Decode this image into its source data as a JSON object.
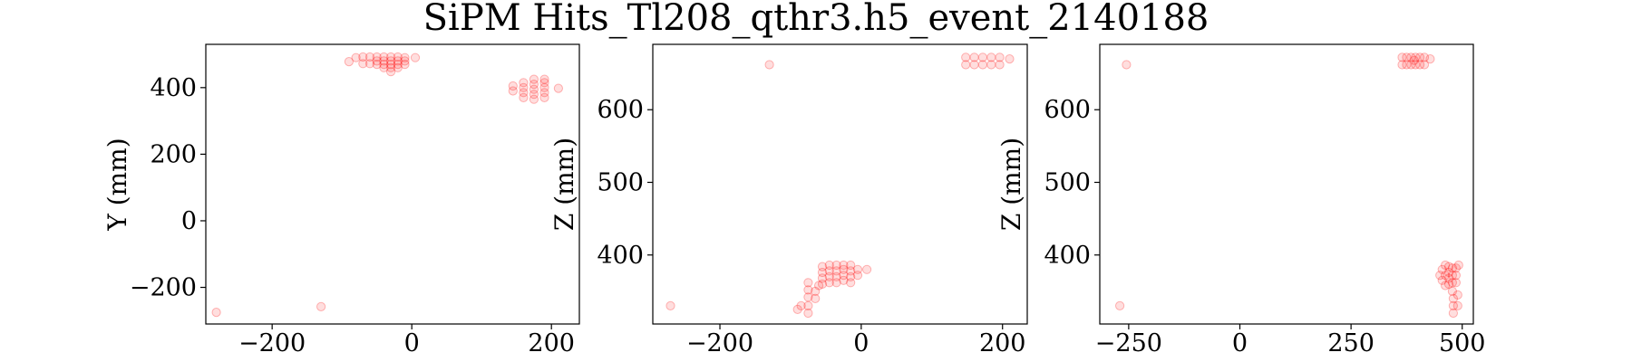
{
  "figure_title": "SiPM Hits_Tl208_qthr3.h5_event_2140188",
  "colors": {
    "points": "#ff0000",
    "frame": "#000000"
  },
  "chart_data": [
    {
      "type": "scatter",
      "xlabel": "",
      "ylabel": "Y (mm)",
      "xlim": [
        -295,
        240
      ],
      "ylim": [
        -310,
        530
      ],
      "xticks": [
        -200,
        0,
        200
      ],
      "yticks": [
        -200,
        0,
        200,
        400
      ],
      "points": [
        [
          -280,
          -275
        ],
        [
          -130,
          -258
        ],
        [
          -90,
          478
        ],
        [
          -80,
          490
        ],
        [
          -70,
          472
        ],
        [
          -70,
          492
        ],
        [
          -60,
          472
        ],
        [
          -60,
          492
        ],
        [
          -50,
          470
        ],
        [
          -50,
          480
        ],
        [
          -50,
          492
        ],
        [
          -40,
          460
        ],
        [
          -40,
          470
        ],
        [
          -40,
          480
        ],
        [
          -40,
          492
        ],
        [
          -30,
          460
        ],
        [
          -30,
          470
        ],
        [
          -30,
          480
        ],
        [
          -30,
          492
        ],
        [
          -20,
          460
        ],
        [
          -20,
          470
        ],
        [
          -20,
          480
        ],
        [
          -20,
          492
        ],
        [
          -10,
          470
        ],
        [
          -10,
          480
        ],
        [
          -10,
          490
        ],
        [
          5,
          490
        ],
        [
          -30,
          448
        ],
        [
          145,
          390
        ],
        [
          145,
          405
        ],
        [
          160,
          370
        ],
        [
          160,
          385
        ],
        [
          160,
          400
        ],
        [
          160,
          415
        ],
        [
          175,
          365
        ],
        [
          175,
          380
        ],
        [
          175,
          395
        ],
        [
          175,
          410
        ],
        [
          175,
          425
        ],
        [
          190,
          370
        ],
        [
          190,
          385
        ],
        [
          190,
          400
        ],
        [
          190,
          415
        ],
        [
          190,
          425
        ],
        [
          210,
          398
        ]
      ]
    },
    {
      "type": "scatter",
      "xlabel": "",
      "ylabel": "Z (mm)",
      "xlim": [
        -295,
        235
      ],
      "ylim": [
        305,
        690
      ],
      "xticks": [
        -200,
        0,
        200
      ],
      "yticks": [
        400,
        500,
        600
      ],
      "points": [
        [
          -270,
          330
        ],
        [
          -130,
          662
        ],
        [
          -90,
          325
        ],
        [
          -85,
          330
        ],
        [
          -75,
          320
        ],
        [
          -75,
          330
        ],
        [
          -75,
          342
        ],
        [
          -75,
          352
        ],
        [
          -75,
          362
        ],
        [
          -65,
          340
        ],
        [
          -65,
          350
        ],
        [
          -60,
          358
        ],
        [
          -55,
          360
        ],
        [
          -55,
          368
        ],
        [
          -55,
          376
        ],
        [
          -55,
          384
        ],
        [
          -45,
          362
        ],
        [
          -45,
          370
        ],
        [
          -45,
          378
        ],
        [
          -45,
          386
        ],
        [
          -35,
          362
        ],
        [
          -35,
          370
        ],
        [
          -35,
          378
        ],
        [
          -35,
          386
        ],
        [
          -25,
          365
        ],
        [
          -25,
          372
        ],
        [
          -25,
          380
        ],
        [
          -25,
          386
        ],
        [
          -15,
          362
        ],
        [
          -15,
          370
        ],
        [
          -15,
          378
        ],
        [
          -15,
          386
        ],
        [
          -5,
          372
        ],
        [
          -5,
          380
        ],
        [
          8,
          380
        ],
        [
          148,
          662
        ],
        [
          148,
          672
        ],
        [
          160,
          662
        ],
        [
          160,
          672
        ],
        [
          172,
          662
        ],
        [
          172,
          672
        ],
        [
          184,
          662
        ],
        [
          184,
          672
        ],
        [
          196,
          662
        ],
        [
          196,
          672
        ],
        [
          210,
          670
        ]
      ]
    },
    {
      "type": "scatter",
      "xlabel": "",
      "ylabel": "Z (mm)",
      "xlim": [
        -315,
        525
      ],
      "ylim": [
        305,
        690
      ],
      "xticks": [
        -250,
        0,
        250,
        500
      ],
      "yticks": [
        400,
        500,
        600
      ],
      "points": [
        [
          -270,
          330
        ],
        [
          -255,
          662
        ],
        [
          365,
          662
        ],
        [
          365,
          672
        ],
        [
          375,
          662
        ],
        [
          375,
          672
        ],
        [
          385,
          662
        ],
        [
          385,
          672
        ],
        [
          392,
          668
        ],
        [
          395,
          662
        ],
        [
          395,
          672
        ],
        [
          405,
          662
        ],
        [
          405,
          672
        ],
        [
          415,
          662
        ],
        [
          415,
          672
        ],
        [
          428,
          670
        ],
        [
          450,
          372
        ],
        [
          455,
          365
        ],
        [
          455,
          380
        ],
        [
          462,
          358
        ],
        [
          462,
          372
        ],
        [
          462,
          386
        ],
        [
          470,
          360
        ],
        [
          470,
          368
        ],
        [
          470,
          376
        ],
        [
          470,
          384
        ],
        [
          478,
          350
        ],
        [
          478,
          362
        ],
        [
          478,
          372
        ],
        [
          478,
          382
        ],
        [
          480,
          340
        ],
        [
          480,
          330
        ],
        [
          480,
          320
        ],
        [
          486,
          362
        ],
        [
          486,
          372
        ],
        [
          486,
          382
        ],
        [
          490,
          345
        ],
        [
          490,
          330
        ],
        [
          492,
          386
        ]
      ]
    }
  ]
}
